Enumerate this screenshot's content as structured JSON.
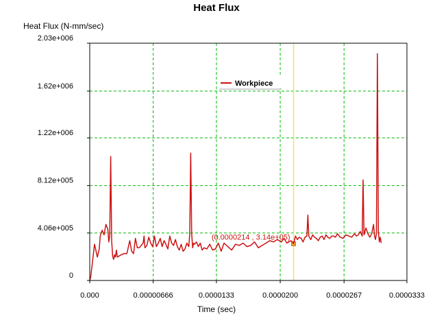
{
  "chart_data": {
    "type": "line",
    "title": "Heat Flux",
    "ylabel": "Heat Flux (N-mm/sec)",
    "xlabel": "Time (sec)",
    "xlim": [
      0,
      3.33e-05
    ],
    "ylim": [
      0,
      2030000
    ],
    "x_ticks": [
      0,
      6.66e-06,
      1.33e-05,
      2e-05,
      2.67e-05,
      3.33e-05
    ],
    "x_tick_labels": [
      "0.000",
      "0.00000666",
      "0.0000133",
      "0.0000200",
      "0.0000267",
      "0.0000333"
    ],
    "y_ticks": [
      0,
      406000,
      812000,
      1220000,
      1620000,
      2030000
    ],
    "y_tick_labels": [
      "0",
      "4.06e+005",
      "8.12e+005",
      "1.22e+006",
      "1.62e+006",
      "2.03e+006"
    ],
    "grid": true,
    "legend": {
      "position": "top-center",
      "entries": [
        "Workpiece"
      ]
    },
    "cursor": {
      "x": 2.14e-05,
      "label": "(0.0000214 , 3.14e+05)",
      "point_y": 314000
    },
    "colors": {
      "series": "#cc1111",
      "grid": "#00bb00",
      "cursor": "#f2e25a",
      "marker": "#f0a030",
      "label": "#cc1111"
    },
    "series": [
      {
        "name": "Workpiece",
        "x": [
          0,
          1e-07,
          5e-07,
          8e-07,
          1e-06,
          1.1e-06,
          1.3e-06,
          1.5e-06,
          1.7e-06,
          1.9e-06,
          2e-06,
          2.1e-06,
          2.2e-06,
          2.3e-06,
          2.4e-06,
          2.5e-06,
          2.6e-06,
          2.7e-06,
          2.8e-06,
          2.9e-06,
          3.1e-06,
          3.3e-06,
          3.6e-06,
          3.9e-06,
          4.2e-06,
          4.4e-06,
          4.6e-06,
          4.8e-06,
          5e-06,
          5.2e-06,
          5.4e-06,
          5.6e-06,
          5.7e-06,
          5.8e-06,
          6e-06,
          6.2e-06,
          6.4e-06,
          6.6e-06,
          6.8e-06,
          7e-06,
          7.2e-06,
          7.4e-06,
          7.6e-06,
          7.8e-06,
          8e-06,
          8.2e-06,
          8.4e-06,
          8.6e-06,
          8.8e-06,
          9e-06,
          9.2e-06,
          9.4e-06,
          9.6e-06,
          9.8e-06,
          1e-05,
          1.02e-05,
          1.04e-05,
          1.05e-05,
          1.06e-05,
          1.07e-05,
          1.08e-05,
          1.09e-05,
          1.1e-05,
          1.12e-05,
          1.14e-05,
          1.16e-05,
          1.18e-05,
          1.2e-05,
          1.23e-05,
          1.26e-05,
          1.29e-05,
          1.32e-05,
          1.35e-05,
          1.38e-05,
          1.41e-05,
          1.45e-05,
          1.49e-05,
          1.53e-05,
          1.57e-05,
          1.61e-05,
          1.65e-05,
          1.69e-05,
          1.73e-05,
          1.77e-05,
          1.81e-05,
          1.85e-05,
          1.89e-05,
          1.93e-05,
          1.97e-05,
          2.01e-05,
          2.04e-05,
          2.07e-05,
          2.09e-05,
          2.11e-05,
          2.13e-05,
          2.14e-05,
          2.16e-05,
          2.18e-05,
          2.2e-05,
          2.22e-05,
          2.24e-05,
          2.26e-05,
          2.28e-05,
          2.29e-05,
          2.3e-05,
          2.32e-05,
          2.34e-05,
          2.36e-05,
          2.38e-05,
          2.4e-05,
          2.42e-05,
          2.44e-05,
          2.46e-05,
          2.48e-05,
          2.5e-05,
          2.52e-05,
          2.54e-05,
          2.56e-05,
          2.58e-05,
          2.6e-05,
          2.63e-05,
          2.66e-05,
          2.69e-05,
          2.72e-05,
          2.75e-05,
          2.78e-05,
          2.8e-05,
          2.82e-05,
          2.84e-05,
          2.85e-05,
          2.86e-05,
          2.87e-05,
          2.88e-05,
          2.9e-05,
          2.92e-05,
          2.94e-05,
          2.96e-05,
          2.98e-05,
          2.99e-05,
          3e-05,
          3.01e-05,
          3.02e-05,
          3.03e-05,
          3.04e-05,
          3.05e-05,
          3.06e-05
        ],
        "y": [
          0,
          30000,
          310000,
          200000,
          270000,
          380000,
          430000,
          390000,
          480000,
          440000,
          330000,
          380000,
          1060000,
          340000,
          210000,
          180000,
          220000,
          200000,
          260000,
          200000,
          210000,
          220000,
          230000,
          230000,
          340000,
          250000,
          230000,
          360000,
          280000,
          280000,
          300000,
          320000,
          380000,
          280000,
          300000,
          370000,
          320000,
          290000,
          380000,
          290000,
          320000,
          360000,
          290000,
          340000,
          310000,
          270000,
          380000,
          320000,
          300000,
          350000,
          290000,
          260000,
          310000,
          250000,
          270000,
          320000,
          290000,
          400000,
          1090000,
          400000,
          280000,
          320000,
          310000,
          330000,
          290000,
          320000,
          260000,
          280000,
          270000,
          310000,
          260000,
          270000,
          320000,
          250000,
          320000,
          290000,
          260000,
          310000,
          300000,
          320000,
          290000,
          300000,
          330000,
          280000,
          300000,
          320000,
          340000,
          330000,
          350000,
          330000,
          360000,
          320000,
          330000,
          340000,
          330000,
          314000,
          380000,
          350000,
          370000,
          360000,
          330000,
          370000,
          380000,
          560000,
          380000,
          350000,
          390000,
          370000,
          360000,
          340000,
          370000,
          380000,
          350000,
          390000,
          370000,
          360000,
          380000,
          380000,
          370000,
          400000,
          370000,
          360000,
          390000,
          380000,
          370000,
          400000,
          380000,
          390000,
          420000,
          400000,
          380000,
          860000,
          390000,
          450000,
          400000,
          370000,
          400000,
          480000,
          380000,
          350000,
          400000,
          1940000,
          420000,
          330000,
          370000,
          320000
        ]
      }
    ]
  }
}
